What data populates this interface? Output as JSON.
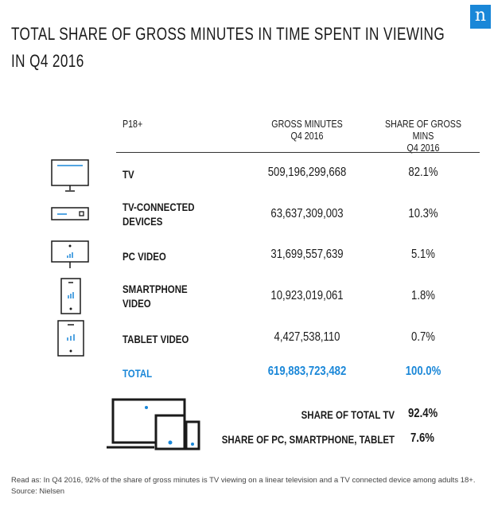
{
  "brand": {
    "logo_letter": "n",
    "color": "#1a87d8"
  },
  "title_line1": "TOTAL SHARE OF GROSS MINUTES IN TIME SPENT IN VIEWING",
  "title_line2": "IN Q4 2016",
  "headers": {
    "col1": "P18+",
    "col2_l1": "GROSS MINUTES",
    "col2_l2": "Q4 2016",
    "col3_l1": "SHARE OF GROSS MINS",
    "col3_l2": "Q4 2016"
  },
  "chart_data": {
    "type": "table",
    "columns": [
      "P18+",
      "GROSS MINUTES Q4 2016",
      "SHARE OF GROSS MINS Q4 2016"
    ],
    "rows": [
      {
        "icon": "tv-icon",
        "label_l1": "TV",
        "label_l2": "",
        "minutes": "509,196,299,668",
        "share": "82.1%"
      },
      {
        "icon": "set-top-box-icon",
        "label_l1": "TV-CONNECTED",
        "label_l2": "DEVICES",
        "minutes": "63,637,309,003",
        "share": "10.3%"
      },
      {
        "icon": "pc-monitor-icon",
        "label_l1": "PC VIDEO",
        "label_l2": "",
        "minutes": "31,699,557,639",
        "share": "5.1%"
      },
      {
        "icon": "smartphone-icon",
        "label_l1": "SMARTPHONE",
        "label_l2": "VIDEO",
        "minutes": "10,923,019,061",
        "share": "1.8%"
      },
      {
        "icon": "tablet-icon",
        "label_l1": "TABLET VIDEO",
        "label_l2": "",
        "minutes": "4,427,538,110",
        "share": "0.7%"
      }
    ],
    "total": {
      "label": "TOTAL",
      "minutes": "619,883,723,482",
      "share": "100.0%"
    }
  },
  "summary": {
    "tv_label": "SHARE OF TOTAL TV",
    "tv_value": "92.4%",
    "digital_label": "SHARE OF PC, SMARTPHONE, TABLET",
    "digital_value": "7.6%"
  },
  "footnote_1": "Read as: In Q4 2016, 92% of the share of gross minutes is TV viewing on a linear television and a TV connected device among adults 18+.",
  "footnote_2": "Source: Nielsen"
}
